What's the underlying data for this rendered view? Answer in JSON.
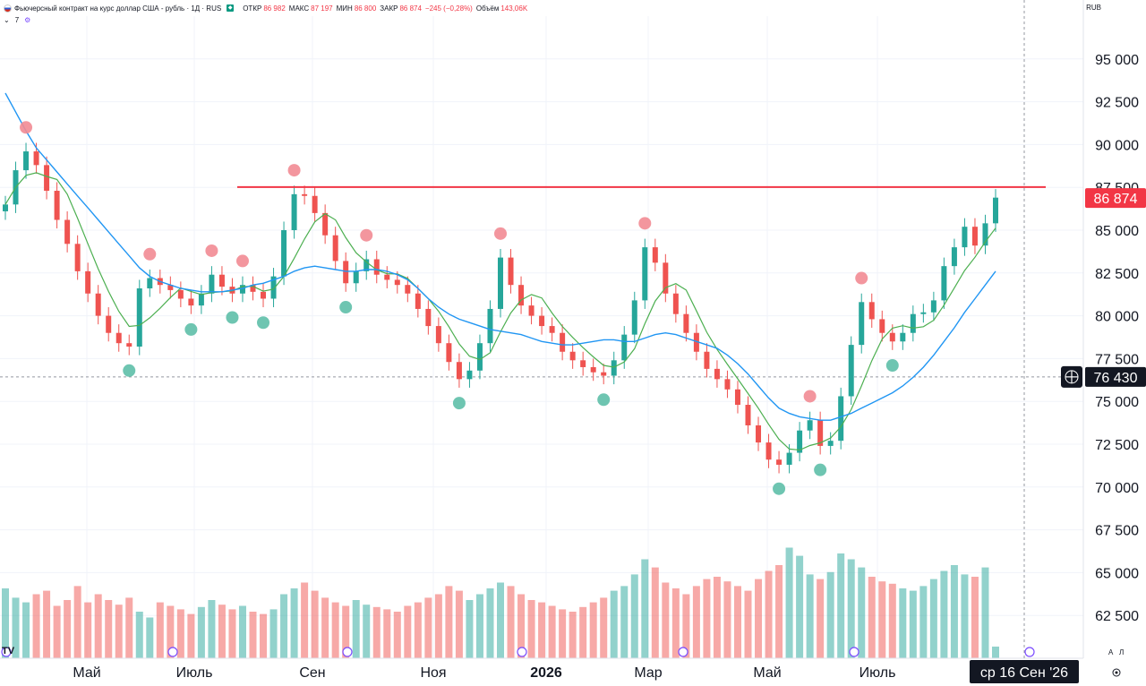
{
  "header": {
    "title": "Фьючерсный контракт на курс доллар США - рубль · 1Д · RUS",
    "open_label": "ОТКР",
    "open_value": "86 982",
    "high_label": "МАКС",
    "high_value": "87 197",
    "low_label": "МИН",
    "low_value": "86 800",
    "close_label": "ЗАКР",
    "close_value": "86 874",
    "change_value": "−245 (−0,28%)",
    "volume_label": "Объём",
    "volume_value": "143,06K",
    "studies_count": "7",
    "currency": "RUB"
  },
  "colors": {
    "up": "#26a69a",
    "down": "#ef5350",
    "resistance": "#f23645",
    "ma_fast": "#4caf50",
    "ma_slow": "#2196f3",
    "price_tag_bg": "#f23645",
    "crosshair_tag_bg": "#131722"
  },
  "chart_data": {
    "type": "line",
    "title": "",
    "ylim": [
      60000,
      97500
    ],
    "y_ticks": [
      "95 000",
      "92 500",
      "90 000",
      "87 500",
      "85 000",
      "82 500",
      "80 000",
      "77 500",
      "75 000",
      "72 500",
      "70 000",
      "67 500",
      "65 000",
      "62 500"
    ],
    "y_tick_values": [
      95000,
      92500,
      90000,
      87500,
      85000,
      82500,
      80000,
      77500,
      75000,
      72500,
      70000,
      67500,
      65000,
      62500
    ],
    "x_ticks": [
      "Май",
      "Июль",
      "Сен",
      "Ноя",
      "2026",
      "Мар",
      "Май",
      "Июль"
    ],
    "last_price": "86 874",
    "last_price_value": 86874,
    "crosshair_price": "76 430",
    "crosshair_price_value": 76430,
    "crosshair_date": "ср 16 Сен '26",
    "resistance_level": 87520,
    "series": [
      {
        "values": [
          86500,
          88500,
          89600,
          88800,
          87300,
          85600,
          84200,
          82600,
          81300,
          80000,
          79000,
          78400,
          78200,
          81600,
          82200,
          81800,
          81500,
          81000,
          80600,
          81300,
          82400,
          81700,
          81300,
          81800,
          81400,
          81000,
          82300,
          85000,
          87100,
          87000,
          86000,
          84700,
          83200,
          81900,
          82600,
          83300,
          82400,
          82100,
          81800,
          81300,
          80400,
          79400,
          78400,
          77300,
          76300,
          76800,
          78400,
          80400,
          83400,
          81800,
          80600,
          80000,
          79400,
          79000,
          77900,
          77400,
          77000,
          76700,
          76500,
          77400,
          78900,
          80900,
          84000,
          83100,
          81300,
          80100,
          79000,
          77900,
          76900,
          76300,
          75700,
          74800,
          73600,
          72600,
          71600,
          71300,
          72000,
          73300,
          73900,
          72400,
          72700,
          75300,
          78300,
          80800,
          79800,
          79000,
          78500,
          79000,
          80100,
          80200,
          80900,
          82900,
          84000,
          85200,
          84100,
          85400,
          86900
        ]
      },
      {
        "values": [
          93000,
          91900,
          90800,
          89800,
          89100,
          88400,
          87700,
          87000,
          86300,
          85600,
          84900,
          84200,
          83500,
          82800,
          82300,
          82000,
          81800,
          81600,
          81500,
          81400,
          81400,
          81400,
          81500,
          81600,
          81800,
          81900,
          82100,
          82300,
          82600,
          82800,
          82900,
          82800,
          82700,
          82600,
          82600,
          82700,
          82700,
          82600,
          82400,
          82100,
          81600,
          81000,
          80500,
          80100,
          79800,
          79600,
          79400,
          79200,
          79100,
          79000,
          78900,
          78700,
          78500,
          78400,
          78300,
          78300,
          78400,
          78500,
          78600,
          78600,
          78500,
          78500,
          78700,
          78900,
          79000,
          78900,
          78700,
          78500,
          78300,
          78100,
          77700,
          77200,
          76600,
          75900,
          75200,
          74600,
          74300,
          74100,
          74000,
          73900,
          73900,
          74100,
          74300,
          74600,
          74900,
          75200,
          75500,
          75900,
          76400,
          77000,
          77700,
          78500,
          79300,
          80200,
          81000,
          81800,
          82600
        ]
      }
    ],
    "volume": {
      "ylim": [
        0,
        100
      ],
      "values": [
        60,
        52,
        48,
        55,
        58,
        45,
        50,
        62,
        48,
        55,
        50,
        46,
        52,
        40,
        35,
        48,
        45,
        42,
        38,
        44,
        50,
        46,
        42,
        45,
        40,
        38,
        42,
        55,
        60,
        65,
        58,
        52,
        48,
        45,
        50,
        46,
        44,
        42,
        40,
        45,
        48,
        52,
        55,
        62,
        58,
        50,
        55,
        60,
        65,
        62,
        55,
        50,
        48,
        45,
        42,
        40,
        44,
        48,
        52,
        58,
        62,
        72,
        85,
        78,
        65,
        60,
        55,
        62,
        68,
        70,
        66,
        62,
        58,
        68,
        75,
        80,
        95,
        88,
        72,
        68,
        74,
        90,
        85,
        78,
        70,
        66,
        64,
        60,
        58,
        62,
        68,
        75,
        80,
        72,
        70,
        78,
        10
      ]
    }
  }
}
